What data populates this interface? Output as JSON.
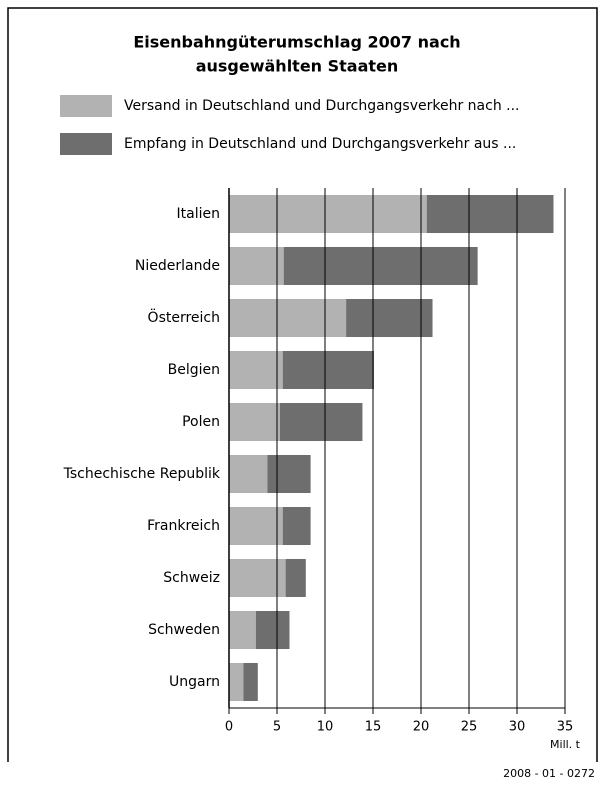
{
  "chart_data": {
    "type": "bar",
    "orientation": "horizontal",
    "stacked": true,
    "title": [
      "Eisenbahngüterumschlag 2007 nach",
      "ausgewählten Staaten"
    ],
    "categories": [
      "Italien",
      "Niederlande",
      "Österreich",
      "Belgien",
      "Polen",
      "Tschechische Republik",
      "Frankreich",
      "Schweiz",
      "Schweden",
      "Ungarn"
    ],
    "series": [
      {
        "name": "Versand in Deutschland und Durchgangsverkehr nach ...",
        "color": "#b2b2b2",
        "values": [
          20.6,
          5.7,
          12.2,
          5.6,
          5.3,
          4.0,
          5.6,
          5.9,
          2.8,
          1.5
        ]
      },
      {
        "name": "Empfang in Deutschland und Durchgangsverkehr aus ...",
        "color": "#6e6e6e",
        "values": [
          13.2,
          20.2,
          9.0,
          9.5,
          8.6,
          4.5,
          2.9,
          2.1,
          3.5,
          1.5
        ]
      }
    ],
    "xlabel": "Mill. t",
    "xlim": [
      0,
      35
    ],
    "xticks": [
      0,
      5,
      10,
      15,
      20,
      25,
      30,
      35
    ],
    "grid": true,
    "footer": "2008 - 01 - 0272"
  }
}
